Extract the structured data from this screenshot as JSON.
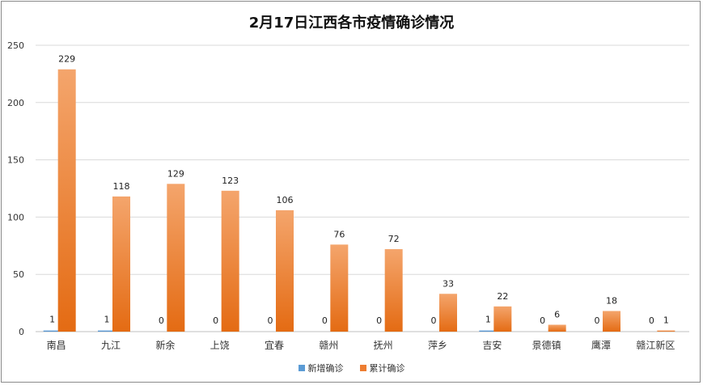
{
  "chart_data": {
    "type": "bar",
    "title": "2月17日江西各市疫情确诊情况",
    "categories": [
      "南昌",
      "九江",
      "新余",
      "上饶",
      "宜春",
      "赣州",
      "抚州",
      "萍乡",
      "吉安",
      "景德镇",
      "鹰潭",
      "赣江新区"
    ],
    "series": [
      {
        "name": "新增确诊",
        "color": "#5b9bd5",
        "values": [
          1,
          1,
          0,
          0,
          0,
          0,
          0,
          0,
          1,
          0,
          0,
          0
        ]
      },
      {
        "name": "累计确诊",
        "color": "#ed7d31",
        "values": [
          229,
          118,
          129,
          123,
          106,
          76,
          72,
          33,
          22,
          6,
          18,
          1
        ]
      }
    ],
    "ylim": [
      0,
      250
    ],
    "yticks": [
      0,
      50,
      100,
      150,
      200,
      250
    ],
    "grid": true,
    "legend": "bottom"
  }
}
